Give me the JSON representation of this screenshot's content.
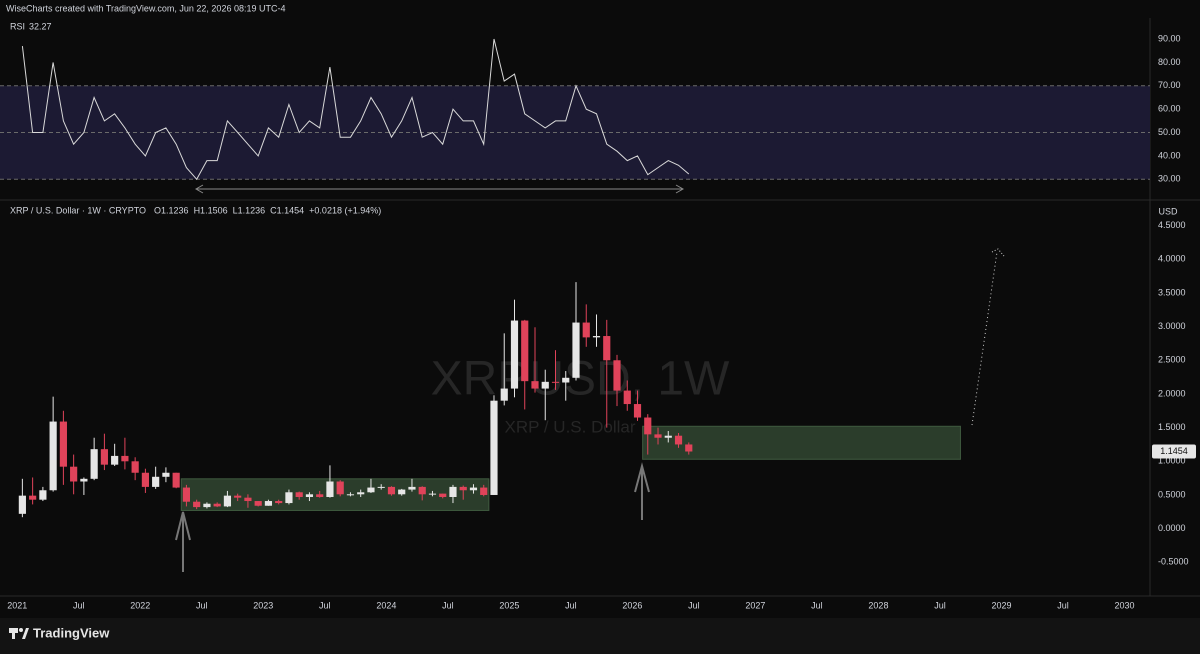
{
  "header": {
    "attribution": "WiseCharts created with TradingView.com, Jun 22, 2026 08:19 UTC-4",
    "footer_logo": "TradingView"
  },
  "chart_data": [
    {
      "type": "line",
      "title": "RSI",
      "last_value": 32.27,
      "color": "#d9d9d9",
      "x": [
        "2021-01",
        "2021-02",
        "2021-03",
        "2021-04",
        "2021-05",
        "2021-06",
        "2021-07",
        "2021-08",
        "2021-09",
        "2021-10",
        "2021-11",
        "2021-12",
        "2022-01",
        "2022-02",
        "2022-03",
        "2022-04",
        "2022-05",
        "2022-06",
        "2022-07",
        "2022-08",
        "2022-09",
        "2022-10",
        "2022-11",
        "2022-12",
        "2023-01",
        "2023-02",
        "2023-03",
        "2023-04",
        "2023-05",
        "2023-06",
        "2023-07",
        "2023-08",
        "2023-09",
        "2023-10",
        "2023-11",
        "2023-12",
        "2024-01",
        "2024-02",
        "2024-03",
        "2024-04",
        "2024-05",
        "2024-06",
        "2024-07",
        "2024-08",
        "2024-09",
        "2024-10",
        "2024-11",
        "2024-12",
        "2025-01",
        "2025-02",
        "2025-03",
        "2025-04",
        "2025-05",
        "2025-06",
        "2025-07",
        "2025-08",
        "2025-09",
        "2025-10",
        "2025-11",
        "2025-12",
        "2026-01",
        "2026-02",
        "2026-03",
        "2026-04",
        "2026-05",
        "2026-06"
      ],
      "values": [
        87,
        50,
        50,
        80,
        55,
        45,
        50,
        65,
        55,
        58,
        52,
        45,
        40,
        50,
        52,
        45,
        35,
        30,
        38,
        38,
        55,
        50,
        45,
        40,
        52,
        48,
        62,
        50,
        55,
        52,
        78,
        48,
        48,
        55,
        65,
        58,
        48,
        55,
        65,
        48,
        50,
        45,
        60,
        55,
        55,
        45,
        90,
        72,
        75,
        58,
        55,
        52,
        55,
        55,
        70,
        60,
        58,
        45,
        42,
        38,
        40,
        32,
        35,
        38,
        36,
        32.27
      ],
      "ylim": [
        22,
        99
      ],
      "yticks": [
        {
          "value": 90,
          "label": "90.00"
        },
        {
          "value": 80,
          "label": "80.00"
        },
        {
          "value": 70,
          "label": "70.00"
        },
        {
          "value": 60,
          "label": "60.00"
        },
        {
          "value": 50,
          "label": "50.00"
        },
        {
          "value": 40,
          "label": "40.00"
        },
        {
          "value": 30,
          "label": "30.00"
        }
      ],
      "levels": [
        70,
        50,
        30
      ],
      "band": [
        30,
        70
      ],
      "band_color": "#1c1a33"
    },
    {
      "type": "candlestick",
      "title": "XRP / U.S. Dollar · 1W · CRYPTO",
      "legend_values": [
        "O1.1236",
        "H1.1506",
        "L1.1236",
        "C1.1454",
        "+0.0218 (+1.94%)"
      ],
      "watermark": [
        "XRPUSD, 1W",
        "XRP / U.S. Dollar"
      ],
      "currency": "USD",
      "last_value": 1.1454,
      "up_color": "#e6e6e6",
      "down_color": "#e0435a",
      "x": [
        "2021-01",
        "2021-02",
        "2021-03",
        "2021-04",
        "2021-05",
        "2021-06",
        "2021-07",
        "2021-08",
        "2021-09",
        "2021-10",
        "2021-11",
        "2021-12",
        "2022-01",
        "2022-02",
        "2022-03",
        "2022-04",
        "2022-05",
        "2022-06",
        "2022-07",
        "2022-08",
        "2022-09",
        "2022-10",
        "2022-11",
        "2022-12",
        "2023-01",
        "2023-02",
        "2023-03",
        "2023-04",
        "2023-05",
        "2023-06",
        "2023-07",
        "2023-08",
        "2023-09",
        "2023-10",
        "2023-11",
        "2023-12",
        "2024-01",
        "2024-02",
        "2024-03",
        "2024-04",
        "2024-05",
        "2024-06",
        "2024-07",
        "2024-08",
        "2024-09",
        "2024-10",
        "2024-11",
        "2024-12",
        "2025-01",
        "2025-02",
        "2025-03",
        "2025-04",
        "2025-05",
        "2025-06",
        "2025-07",
        "2025-08",
        "2025-09",
        "2025-10",
        "2025-11",
        "2025-12",
        "2026-01",
        "2026-02",
        "2026-03",
        "2026-04",
        "2026-05",
        "2026-06"
      ],
      "open": [
        0.22,
        0.49,
        0.43,
        0.57,
        1.59,
        0.92,
        0.7,
        0.74,
        1.18,
        0.95,
        1.08,
        1.0,
        0.83,
        0.62,
        0.77,
        0.83,
        0.61,
        0.4,
        0.32,
        0.37,
        0.33,
        0.49,
        0.46,
        0.41,
        0.34,
        0.41,
        0.38,
        0.54,
        0.47,
        0.51,
        0.47,
        0.7,
        0.51,
        0.51,
        0.54,
        0.61,
        0.62,
        0.51,
        0.58,
        0.62,
        0.51,
        0.52,
        0.47,
        0.62,
        0.57,
        0.61,
        0.5,
        1.9,
        2.08,
        3.09,
        2.19,
        2.08,
        2.18,
        2.17,
        2.24,
        3.06,
        2.84,
        2.86,
        2.5,
        2.05,
        1.85,
        1.65,
        1.4,
        1.35,
        1.38,
        1.25
      ],
      "high": [
        0.74,
        0.76,
        0.62,
        1.96,
        1.75,
        1.1,
        0.76,
        1.35,
        1.41,
        1.26,
        1.35,
        1.06,
        0.89,
        0.92,
        0.91,
        0.83,
        0.65,
        0.43,
        0.39,
        0.39,
        0.56,
        0.52,
        0.51,
        0.41,
        0.43,
        0.43,
        0.58,
        0.55,
        0.54,
        0.56,
        0.94,
        0.72,
        0.54,
        0.58,
        0.74,
        0.66,
        0.63,
        0.59,
        0.74,
        0.63,
        0.56,
        0.52,
        0.65,
        0.64,
        0.66,
        0.65,
        1.98,
        2.9,
        3.4,
        3.1,
        2.99,
        2.36,
        2.65,
        2.34,
        3.66,
        3.33,
        3.18,
        3.1,
        2.58,
        2.2,
        2.05,
        1.7,
        1.5,
        1.45,
        1.42,
        1.28
      ],
      "low": [
        0.17,
        0.36,
        0.41,
        0.55,
        0.65,
        0.51,
        0.5,
        0.72,
        0.87,
        0.93,
        0.88,
        0.72,
        0.53,
        0.59,
        0.69,
        0.6,
        0.33,
        0.29,
        0.3,
        0.32,
        0.32,
        0.41,
        0.31,
        0.33,
        0.34,
        0.36,
        0.36,
        0.43,
        0.41,
        0.46,
        0.46,
        0.48,
        0.48,
        0.47,
        0.53,
        0.58,
        0.49,
        0.49,
        0.55,
        0.42,
        0.48,
        0.45,
        0.38,
        0.43,
        0.52,
        0.48,
        0.5,
        1.83,
        1.95,
        1.77,
        2.02,
        1.61,
        2.06,
        1.9,
        2.2,
        2.7,
        2.7,
        1.5,
        1.82,
        1.75,
        1.6,
        1.1,
        1.25,
        1.28,
        1.2,
        1.1
      ],
      "close": [
        0.49,
        0.43,
        0.57,
        1.59,
        0.92,
        0.7,
        0.74,
        1.18,
        0.95,
        1.08,
        1.0,
        0.83,
        0.62,
        0.77,
        0.83,
        0.61,
        0.4,
        0.32,
        0.37,
        0.33,
        0.49,
        0.46,
        0.41,
        0.34,
        0.41,
        0.38,
        0.54,
        0.47,
        0.51,
        0.47,
        0.7,
        0.51,
        0.51,
        0.54,
        0.61,
        0.62,
        0.51,
        0.58,
        0.62,
        0.51,
        0.52,
        0.47,
        0.62,
        0.57,
        0.61,
        0.5,
        1.9,
        2.08,
        3.09,
        2.19,
        2.08,
        2.18,
        2.17,
        2.24,
        3.06,
        2.84,
        2.86,
        2.5,
        2.05,
        1.85,
        1.65,
        1.4,
        1.35,
        1.38,
        1.25,
        1.1454
      ],
      "zones": [
        {
          "x": [
            "2022-05",
            "2024-11"
          ],
          "y": [
            0.27,
            0.74
          ],
          "color": "#2b3d2b"
        },
        {
          "x": [
            "2026-02",
            "2028-09"
          ],
          "y": [
            1.03,
            1.52
          ],
          "color": "#2b3d2b"
        }
      ],
      "ylim": [
        -1,
        4.85
      ],
      "yticks": [
        {
          "value": 4.5,
          "label": "4.5000"
        },
        {
          "value": 4,
          "label": "4.0000"
        },
        {
          "value": 3.5,
          "label": "3.5000"
        },
        {
          "value": 3,
          "label": "3.0000"
        },
        {
          "value": 2.5,
          "label": "2.5000"
        },
        {
          "value": 2,
          "label": "2.0000"
        },
        {
          "value": 1.5,
          "label": "1.5000"
        },
        {
          "value": 1,
          "label": "1.0000"
        },
        {
          "value": 0.5,
          "label": "0.5000"
        },
        {
          "value": 0,
          "label": "0.0000"
        },
        {
          "value": -0.5,
          "label": "-0.5000"
        }
      ],
      "xlim": [
        "2020-12",
        "2030-03"
      ],
      "xticks": [
        {
          "value": "2021-01",
          "label": "2021"
        },
        {
          "value": "2021-07",
          "label": "Jul"
        },
        {
          "value": "2022-01",
          "label": "2022"
        },
        {
          "value": "2022-07",
          "label": "Jul"
        },
        {
          "value": "2023-01",
          "label": "2023"
        },
        {
          "value": "2023-07",
          "label": "Jul"
        },
        {
          "value": "2024-01",
          "label": "2024"
        },
        {
          "value": "2024-07",
          "label": "Jul"
        },
        {
          "value": "2025-01",
          "label": "2025"
        },
        {
          "value": "2025-07",
          "label": "Jul"
        },
        {
          "value": "2026-01",
          "label": "2026"
        },
        {
          "value": "2026-07",
          "label": "Jul"
        },
        {
          "value": "2027-01",
          "label": "2027"
        },
        {
          "value": "2027-07",
          "label": "Jul"
        },
        {
          "value": "2028-01",
          "label": "2028"
        },
        {
          "value": "2028-07",
          "label": "Jul"
        },
        {
          "value": "2029-01",
          "label": "2029"
        },
        {
          "value": "2029-07",
          "label": "Jul"
        },
        {
          "value": "2030-01",
          "label": "2030"
        }
      ]
    }
  ]
}
